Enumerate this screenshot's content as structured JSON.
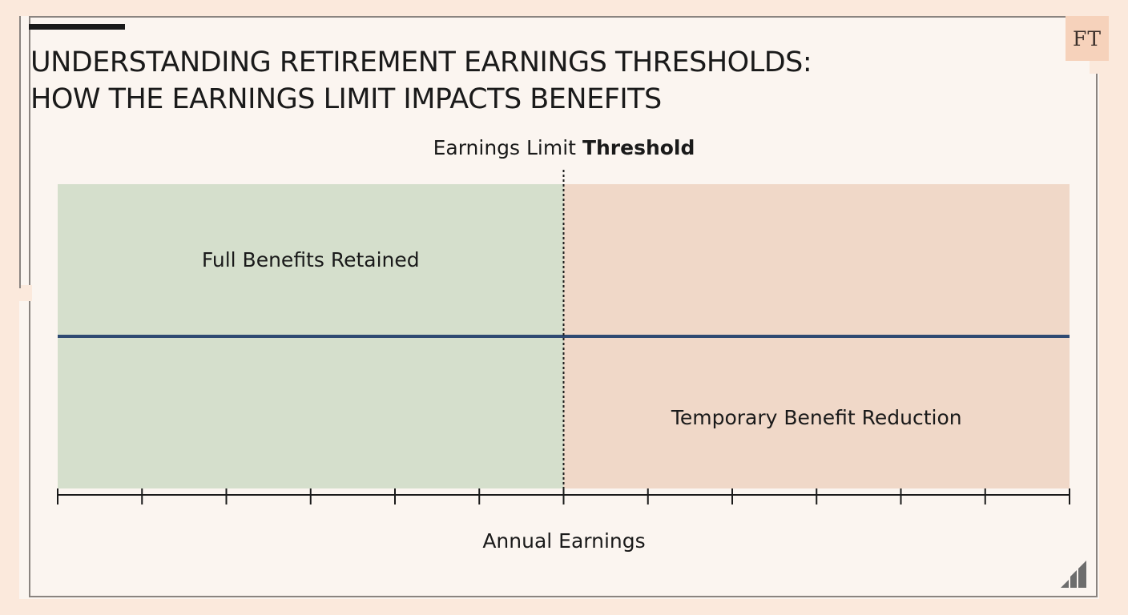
{
  "title_lines": [
    "UNDERSTANDING RETIREMENT EARNINGS THRESHOLDS:",
    "HOW THE EARNINGS LIMIT IMPACTS BENEFITS"
  ],
  "logo_text": "FT",
  "threshold_label": {
    "prefix": "Earnings Limit ",
    "bold": "Threshold"
  },
  "colors": {
    "full_benefits_zone": "#d5dfcc",
    "reduction_zone": "#f0d8c8",
    "benefit_line": "#2f4a72",
    "axis": "#1a1a1a"
  },
  "icons": [
    "bar-chart-icon"
  ],
  "chart_data": {
    "type": "area",
    "xlabel": "Annual Earnings",
    "ylabel": "",
    "grid": false,
    "x_ticks": 13,
    "threshold_position": 0.5,
    "zones": [
      {
        "label": "Full Benefits Retained",
        "from": 0,
        "to": 0.5,
        "color": "#d5dfcc"
      },
      {
        "label": "Temporary Benefit Reduction",
        "from": 0.5,
        "to": 1,
        "color": "#f0d8c8"
      }
    ],
    "series": [
      {
        "values": [
          0.5,
          0.5
        ]
      }
    ]
  }
}
